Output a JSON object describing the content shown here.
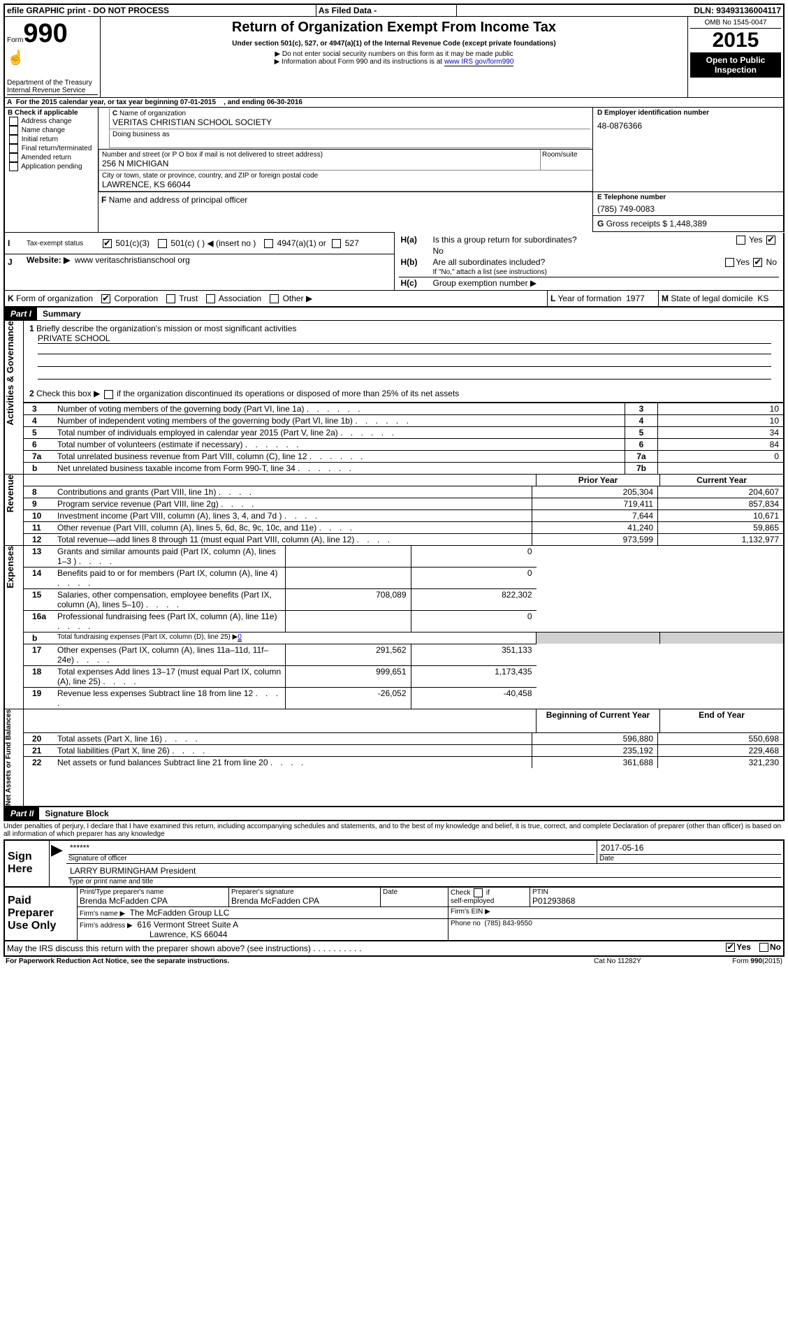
{
  "topbar": {
    "efile": "efile GRAPHIC print - DO NOT PROCESS",
    "asfiled": "As Filed Data -",
    "dln_label": "DLN:",
    "dln": "93493136004117"
  },
  "header": {
    "form_label": "Form",
    "form_num": "990",
    "dept": "Department of the Treasury",
    "irs": "Internal Revenue Service",
    "title": "Return of Organization Exempt From Income Tax",
    "subtitle": "Under section 501(c), 527, or 4947(a)(1) of the Internal Revenue Code (except private foundations)",
    "note1": "▶ Do not enter social security numbers on this form as it may be made public",
    "note2": "▶ Information about Form 990 and its instructions is at ",
    "note2_link": "www IRS gov/form990",
    "omb": "OMB No 1545-0047",
    "year": "2015",
    "open": "Open to Public Inspection"
  },
  "sectionA": {
    "a_text": "For the 2015 calendar year, or tax year beginning 07-01-2015",
    "a_mid": ", and ending 06-30-2016",
    "b_label": "Check if applicable",
    "b_opts": [
      "Address change",
      "Name change",
      "Initial return",
      "Final return/terminated",
      "Amended return",
      "Application pending"
    ],
    "c_label": "Name of organization",
    "c_name": "VERITAS CHRISTIAN SCHOOL SOCIETY",
    "dba_label": "Doing business as",
    "street_label": "Number and street (or P O box if mail is not delivered to street address)",
    "room_label": "Room/suite",
    "street": "256 N MICHIGAN",
    "city_label": "City or town, state or province, country, and ZIP or foreign postal code",
    "city": "LAWRENCE, KS  66044",
    "f_label": "Name and address of principal officer",
    "d_label": "Employer identification number",
    "d_val": "48-0876366",
    "e_label": "E Telephone number",
    "e_val": "(785) 749-0083",
    "g_label": "Gross receipts $",
    "g_val": "1,448,389",
    "ha_label": "Is this a group return for subordinates?",
    "ha_no": "No",
    "hb_label": "Are all subordinates included?",
    "hb_note": "If \"No,\" attach a list (see instructions)",
    "hc_label": "Group exemption number ▶"
  },
  "i": {
    "label": "Tax-exempt status",
    "c3": "501(c)(3)",
    "c": "501(c) (  ) ◀ (insert no )",
    "a1": "4947(a)(1) or",
    "s527": "527"
  },
  "j": {
    "label": "Website: ▶",
    "val": "www veritaschristianschool org"
  },
  "k": {
    "label": "Form of organization",
    "corp": "Corporation",
    "trust": "Trust",
    "assoc": "Association",
    "other": "Other ▶"
  },
  "l": {
    "label": "Year of formation",
    "val": "1977"
  },
  "m": {
    "label": "State of legal domicile",
    "val": "KS"
  },
  "part1": {
    "tag": "Part I",
    "title": "Summary",
    "l1": "Briefly describe the organization's mission or most significant activities",
    "l1_val": "PRIVATE SCHOOL",
    "l2": "Check this box ▶",
    "l2_rest": "if the organization discontinued its operations or disposed of more than 25% of its net assets",
    "rows_ag": [
      {
        "n": "3",
        "t": "Number of voting members of the governing body (Part VI, line 1a)",
        "box": "3",
        "v": "10"
      },
      {
        "n": "4",
        "t": "Number of independent voting members of the governing body (Part VI, line 1b)",
        "box": "4",
        "v": "10"
      },
      {
        "n": "5",
        "t": "Total number of individuals employed in calendar year 2015 (Part V, line 2a)",
        "box": "5",
        "v": "34"
      },
      {
        "n": "6",
        "t": "Total number of volunteers (estimate if necessary)",
        "box": "6",
        "v": "84"
      },
      {
        "n": "7a",
        "t": "Total unrelated business revenue from Part VIII, column (C), line 12",
        "box": "7a",
        "v": "0"
      },
      {
        "n": "b",
        "t": "Net unrelated business taxable income from Form 990-T, line 34",
        "box": "7b",
        "v": ""
      }
    ],
    "prior": "Prior Year",
    "curr": "Current Year",
    "rows_rev": [
      {
        "n": "8",
        "t": "Contributions and grants (Part VIII, line 1h)",
        "p": "205,304",
        "c": "204,607"
      },
      {
        "n": "9",
        "t": "Program service revenue (Part VIII, line 2g)",
        "p": "719,411",
        "c": "857,834"
      },
      {
        "n": "10",
        "t": "Investment income (Part VIII, column (A), lines 3, 4, and 7d )",
        "p": "7,644",
        "c": "10,671"
      },
      {
        "n": "11",
        "t": "Other revenue (Part VIII, column (A), lines 5, 6d, 8c, 9c, 10c, and 11e)",
        "p": "41,240",
        "c": "59,865"
      },
      {
        "n": "12",
        "t": "Total revenue—add lines 8 through 11 (must equal Part VIII, column (A), line 12)",
        "p": "973,599",
        "c": "1,132,977"
      }
    ],
    "rows_exp": [
      {
        "n": "13",
        "t": "Grants and similar amounts paid (Part IX, column (A), lines 1–3 )",
        "p": "",
        "c": "0"
      },
      {
        "n": "14",
        "t": "Benefits paid to or for members (Part IX, column (A), line 4)",
        "p": "",
        "c": "0"
      },
      {
        "n": "15",
        "t": "Salaries, other compensation, employee benefits (Part IX, column (A), lines 5–10)",
        "p": "708,089",
        "c": "822,302"
      },
      {
        "n": "16a",
        "t": "Professional fundraising fees (Part IX, column (A), line 11e)",
        "p": "",
        "c": "0"
      },
      {
        "n": "b",
        "t": "Total fundraising expenses (Part IX, column (D), line 25) ▶",
        "p": "",
        "c": "",
        "inline": "0"
      },
      {
        "n": "17",
        "t": "Other expenses (Part IX, column (A), lines 11a–11d, 11f–24e)",
        "p": "291,562",
        "c": "351,133"
      },
      {
        "n": "18",
        "t": "Total expenses Add lines 13–17 (must equal Part IX, column (A), line 25)",
        "p": "999,651",
        "c": "1,173,435"
      },
      {
        "n": "19",
        "t": "Revenue less expenses Subtract line 18 from line 12",
        "p": "-26,052",
        "c": "-40,458"
      }
    ],
    "beg": "Beginning of Current Year",
    "end": "End of Year",
    "rows_net": [
      {
        "n": "20",
        "t": "Total assets (Part X, line 16)",
        "p": "596,880",
        "c": "550,698"
      },
      {
        "n": "21",
        "t": "Total liabilities (Part X, line 26)",
        "p": "235,192",
        "c": "229,468"
      },
      {
        "n": "22",
        "t": "Net assets or fund balances Subtract line 21 from line 20",
        "p": "361,688",
        "c": "321,230"
      }
    ],
    "side_ag": "Activities & Governance",
    "side_rev": "Revenue",
    "side_exp": "Expenses",
    "side_net": "Net Assets or Fund Balances"
  },
  "part2": {
    "tag": "Part II",
    "title": "Signature Block",
    "perjury": "Under penalties of perjury, I declare that I have examined this return, including accompanying schedules and statements, and to the best of my knowledge and belief, it is true, correct, and complete Declaration of preparer (other than officer) is based on all information of which preparer has any knowledge",
    "sign_here": "Sign Here",
    "sig_stars": "******",
    "sig_of_officer": "Signature of officer",
    "date": "Date",
    "date_val": "2017-05-16",
    "officer_name": "LARRY BURMINGHAM President",
    "type_name": "Type or print name and title",
    "paid": "Paid Preparer Use Only",
    "prep_name_l": "Print/Type preparer's name",
    "prep_name": "Brenda McFadden CPA",
    "prep_sig_l": "Preparer's signature",
    "prep_sig": "Brenda McFadden CPA",
    "date2": "Date",
    "self_emp": "self-employed",
    "check_if": "Check",
    "if": "if",
    "ptin_l": "PTIN",
    "ptin": "P01293868",
    "firm_name_l": "Firm's name    ▶",
    "firm_name": "The McFadden Group LLC",
    "firm_ein_l": "Firm's EIN ▶",
    "firm_addr_l": "Firm's address ▶",
    "firm_addr1": "616 Vermont Street Suite A",
    "firm_addr2": "Lawrence, KS  66044",
    "phone_l": "Phone no",
    "phone": "(785) 843-9550",
    "may_irs": "May the IRS discuss this return with the preparer shown above? (see instructions)",
    "yes": "Yes",
    "no": "No"
  },
  "footer": {
    "paperwork": "For Paperwork Reduction Act Notice, see the separate instructions.",
    "cat": "Cat No 11282Y",
    "form": "Form",
    "formnum": "990",
    "formyear": "(2015)"
  }
}
